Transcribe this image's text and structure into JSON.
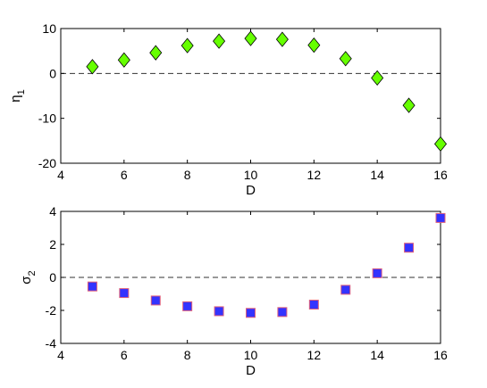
{
  "chart_data": [
    {
      "type": "scatter",
      "xlabel": "D",
      "ylabel": "η",
      "ylabel_sub": "1",
      "xlim": [
        4,
        16
      ],
      "ylim": [
        -20,
        10
      ],
      "xticks": [
        4,
        6,
        8,
        10,
        12,
        14,
        16
      ],
      "yticks": [
        -20,
        -10,
        0,
        10
      ],
      "reference_line": 0,
      "marker": "diamond",
      "marker_fill": "#66ff00",
      "marker_edge": "#000000",
      "x": [
        5,
        6,
        7,
        8,
        9,
        10,
        11,
        12,
        13,
        14,
        15,
        16
      ],
      "y": [
        1.5,
        3.0,
        4.6,
        6.2,
        7.2,
        7.8,
        7.6,
        6.3,
        3.3,
        -1.0,
        -7.1,
        -15.7
      ]
    },
    {
      "type": "scatter",
      "xlabel": "D",
      "ylabel": "σ",
      "ylabel_sub": "2",
      "xlim": [
        4,
        16
      ],
      "ylim": [
        -4,
        4
      ],
      "xticks": [
        4,
        6,
        8,
        10,
        12,
        14,
        16
      ],
      "yticks": [
        -4,
        -2,
        0,
        2,
        4
      ],
      "reference_line": 0,
      "marker": "square",
      "marker_fill": "#3333ff",
      "marker_edge": "#e0607a",
      "x": [
        5,
        6,
        7,
        8,
        9,
        10,
        11,
        12,
        13,
        14,
        15,
        16
      ],
      "y": [
        -0.55,
        -0.95,
        -1.4,
        -1.75,
        -2.05,
        -2.15,
        -2.1,
        -1.65,
        -0.75,
        0.25,
        1.8,
        3.6
      ]
    }
  ]
}
